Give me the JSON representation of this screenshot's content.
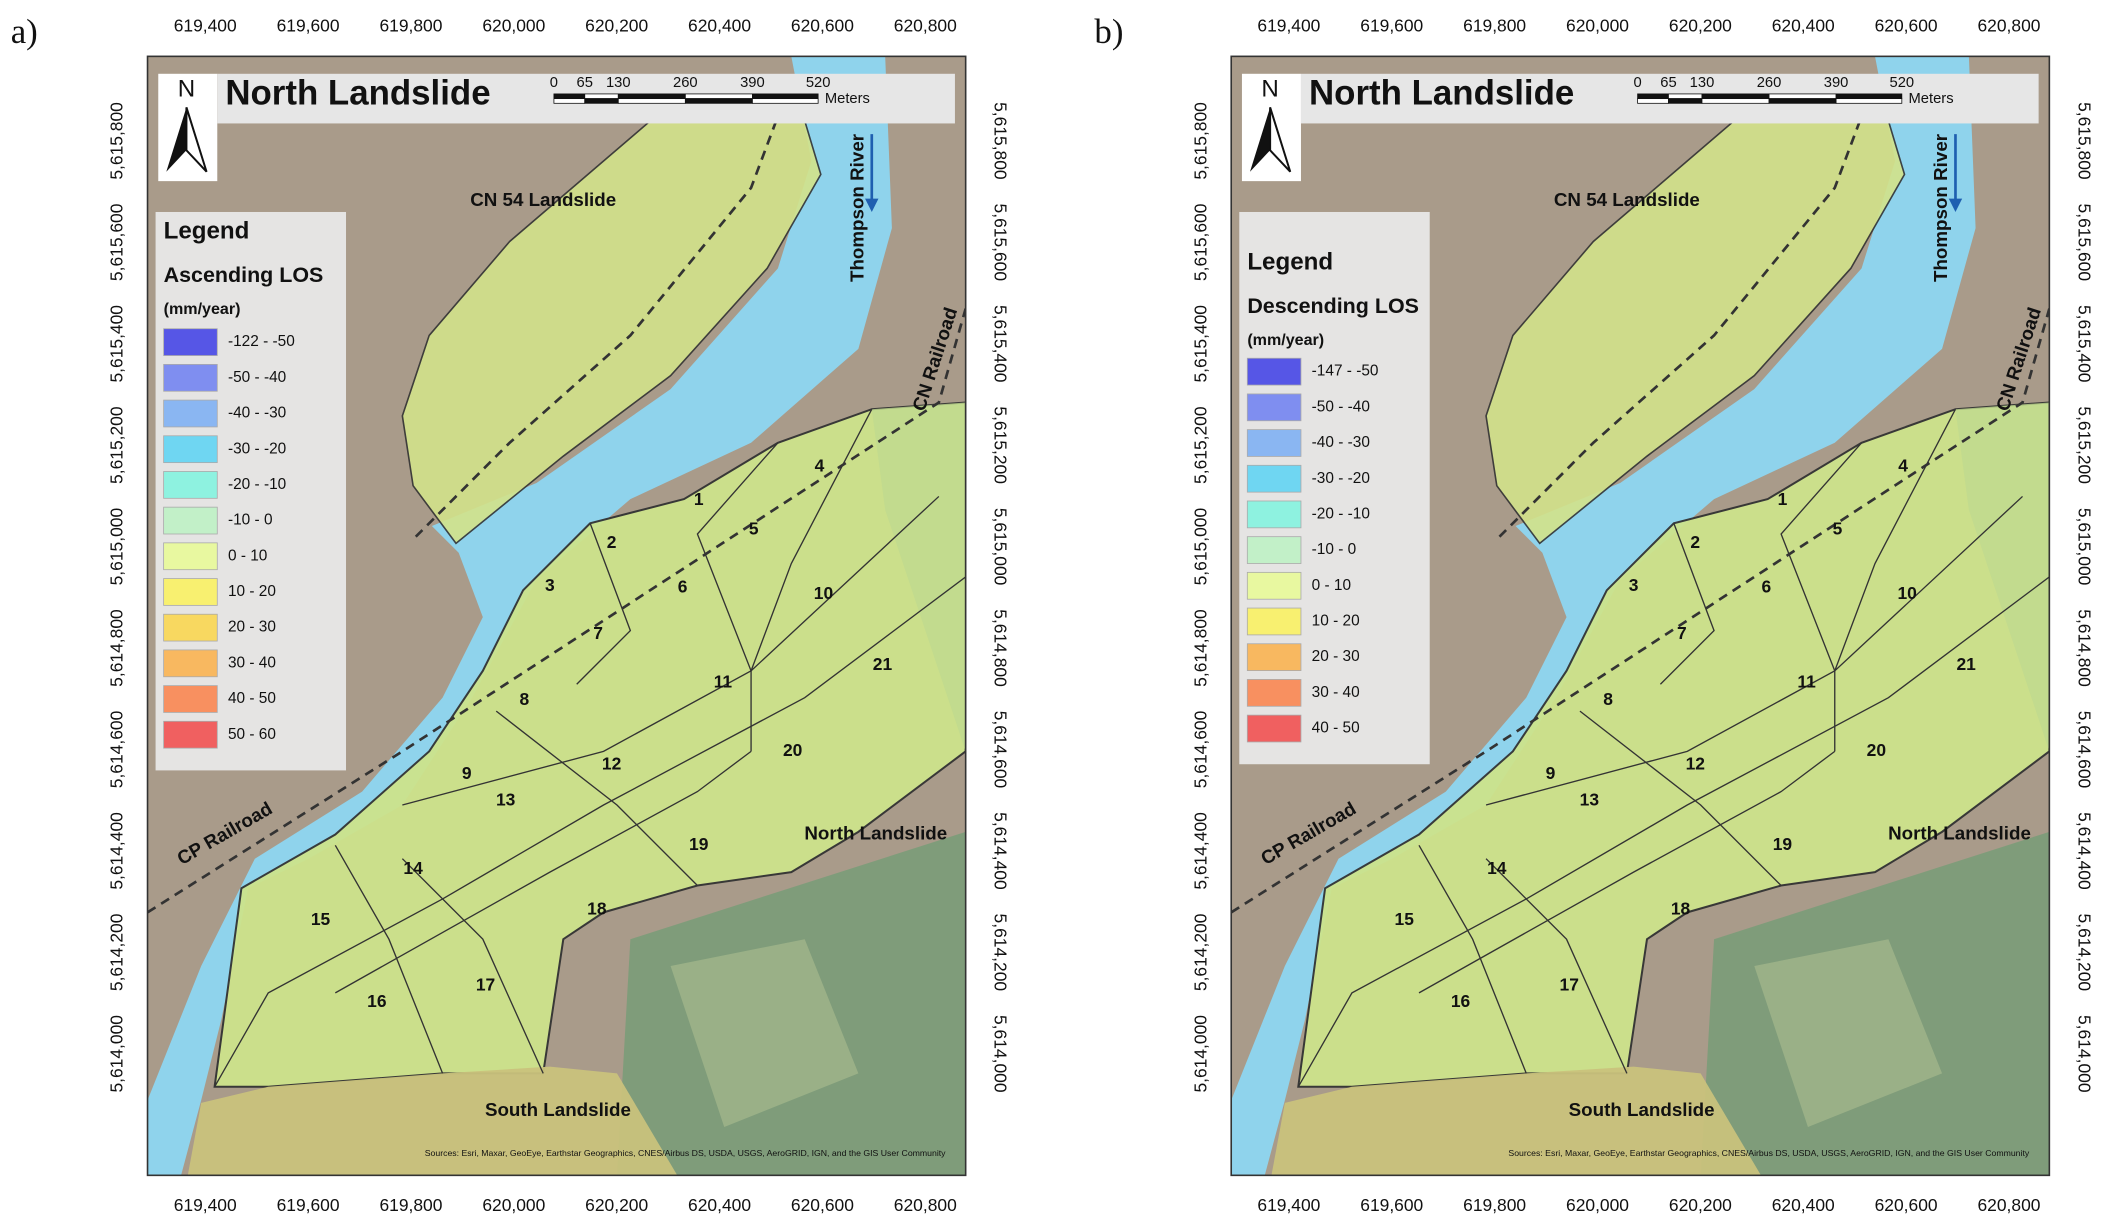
{
  "map_grid": {
    "easting": [
      "619,400",
      "619,600",
      "619,800",
      "620,000",
      "620,200",
      "620,400",
      "620,600",
      "620,800"
    ],
    "northing": [
      "5,615,800",
      "5,615,600",
      "5,615,400",
      "5,615,200",
      "5,615,000",
      "5,614,800",
      "5,614,600",
      "5,614,400",
      "5,614,200",
      "5,614,000"
    ]
  },
  "scale_bar": {
    "labels": [
      "0",
      "65",
      "130",
      "260",
      "390",
      "520"
    ],
    "unit": "Meters"
  },
  "north_label": "N",
  "places": [
    "CN 54 Landslide",
    "Thompson River",
    "CN Railroad",
    "CP Railroad",
    "North Landslide",
    "South Landslide"
  ],
  "zones": [
    "1",
    "2",
    "3",
    "4",
    "5",
    "6",
    "7",
    "8",
    "9",
    "10",
    "11",
    "12",
    "13",
    "14",
    "15",
    "16",
    "17",
    "18",
    "19",
    "20",
    "21"
  ],
  "attribution": "Sources: Esri, Maxar, GeoEye, Earthstar Geographics, CNES/Airbus DS, USDA, USGS, AeroGRID, IGN, and the GIS User Community",
  "panels": [
    {
      "label": "a)",
      "title": "North Landslide",
      "legend": {
        "title": "Legend",
        "subtitle": "Ascending LOS",
        "unit": "(mm/year)",
        "classes": [
          {
            "label": "-122 - -50",
            "color": "#5656e6"
          },
          {
            "label": "-50 - -40",
            "color": "#7f8ef0"
          },
          {
            "label": "-40 - -30",
            "color": "#8ab6f2"
          },
          {
            "label": "-30 - -20",
            "color": "#6fd6f2"
          },
          {
            "label": "-20 - -10",
            "color": "#8ef2e0"
          },
          {
            "label": "-10 - 0",
            "color": "#c2f0c8"
          },
          {
            "label": "0 - 10",
            "color": "#e8f8a0"
          },
          {
            "label": "10 - 20",
            "color": "#f8f070"
          },
          {
            "label": "20 - 30",
            "color": "#f8d860"
          },
          {
            "label": "30 - 40",
            "color": "#f8b860"
          },
          {
            "label": "40 - 50",
            "color": "#f89060"
          },
          {
            "label": "50 - 60",
            "color": "#f06060"
          }
        ]
      }
    },
    {
      "label": "b)",
      "title": "North Landslide",
      "legend": {
        "title": "Legend",
        "subtitle": "Descending LOS",
        "unit": "(mm/year)",
        "classes": [
          {
            "label": "-147 - -50",
            "color": "#5656e6"
          },
          {
            "label": "-50 - -40",
            "color": "#7f8ef0"
          },
          {
            "label": "-40 - -30",
            "color": "#8ab6f2"
          },
          {
            "label": "-30 - -20",
            "color": "#6fd6f2"
          },
          {
            "label": "-20 - -10",
            "color": "#8ef2e0"
          },
          {
            "label": "-10 - 0",
            "color": "#c2f0c8"
          },
          {
            "label": "0 - 10",
            "color": "#e8f8a0"
          },
          {
            "label": "10 - 20",
            "color": "#f8f070"
          },
          {
            "label": "20 - 30",
            "color": "#f8b860"
          },
          {
            "label": "30 - 40",
            "color": "#f89060"
          },
          {
            "label": "40 - 50",
            "color": "#f06060"
          }
        ]
      }
    }
  ]
}
